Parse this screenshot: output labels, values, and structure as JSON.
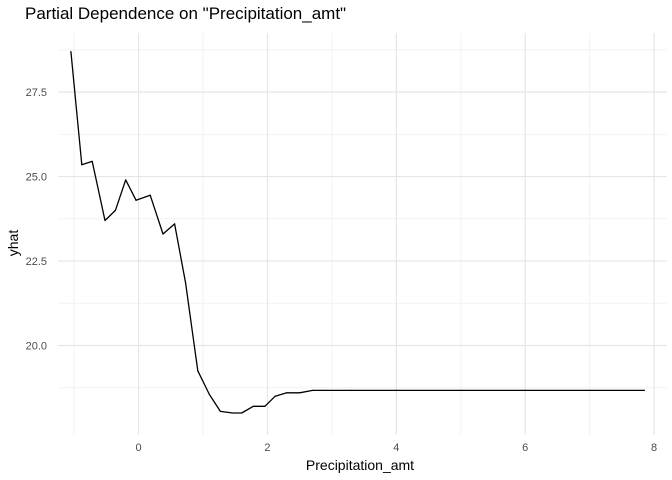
{
  "chart_data": {
    "type": "line",
    "title": "Partial Dependence on \"Precipitation_amt\"",
    "xlabel": "Precipitation_amt",
    "ylabel": "yhat",
    "xlim": [
      -1.25,
      8.2
    ],
    "ylim": [
      17.35,
      29.25
    ],
    "x_ticks": [
      0,
      2,
      4,
      6,
      8
    ],
    "x_tick_labels": [
      "0",
      "2",
      "4",
      "6",
      "8"
    ],
    "y_ticks": [
      20.0,
      22.5,
      25.0,
      27.5
    ],
    "y_tick_labels": [
      "20.0",
      "22.5",
      "25.0",
      "27.5"
    ],
    "grid": true,
    "legend": "none",
    "series": [
      {
        "line_color": "#000000",
        "x": [
          -1.05,
          -0.88,
          -0.72,
          -0.52,
          -0.36,
          -0.2,
          -0.04,
          0.18,
          0.38,
          0.56,
          0.73,
          0.92,
          1.1,
          1.27,
          1.46,
          1.6,
          1.78,
          1.96,
          2.12,
          2.3,
          2.5,
          2.7,
          2.9,
          3.3,
          4.0,
          5.0,
          6.0,
          7.0,
          7.85
        ],
        "y": [
          28.7,
          25.35,
          25.45,
          23.7,
          24.0,
          24.9,
          24.3,
          24.45,
          23.3,
          23.6,
          21.85,
          19.25,
          18.55,
          18.05,
          18.0,
          18.0,
          18.2,
          18.2,
          18.5,
          18.6,
          18.6,
          18.67,
          18.67,
          18.67,
          18.67,
          18.67,
          18.67,
          18.67,
          18.67
        ]
      }
    ]
  }
}
